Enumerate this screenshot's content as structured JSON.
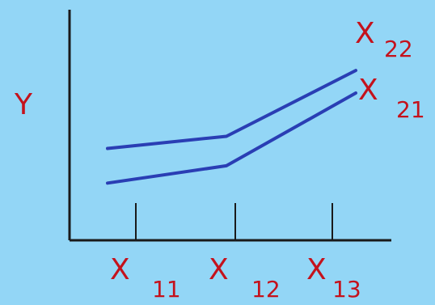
{
  "chart_data": {
    "type": "line",
    "ylabel": "Y",
    "x": [
      {
        "base": "X",
        "sub": "11"
      },
      {
        "base": "X",
        "sub": "12"
      },
      {
        "base": "X",
        "sub": "13"
      }
    ],
    "series": [
      {
        "name": {
          "base": "X",
          "sub": "22"
        },
        "values": [
          5.3,
          6.0,
          9.8
        ]
      },
      {
        "name": {
          "base": "X",
          "sub": "21"
        },
        "values": [
          3.3,
          4.3,
          8.5
        ]
      }
    ],
    "ylim": [
      0,
      12
    ],
    "grid": false,
    "legend": "inline-right",
    "colors": {
      "background": "#93d6f6",
      "axis": "#1a1a1a",
      "line": "#2a3eb4",
      "text": "#c4121c"
    }
  }
}
